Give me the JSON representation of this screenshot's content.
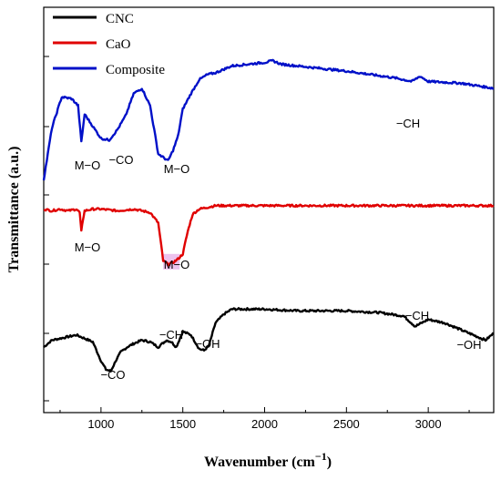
{
  "chart_data": {
    "type": "line",
    "title": "",
    "xlabel": "Wavenumber (cm−1)",
    "xlabel_main": "Wavenumber (cm",
    "xlabel_sup": "−1",
    "xlabel_close": ")",
    "ylabel": "Transmittance (a.u.)",
    "xlim": [
      650,
      3400
    ],
    "x_ticks": [
      1000,
      1500,
      2000,
      2500,
      3000
    ],
    "x_tick_labels": [
      "1000",
      "1500",
      "2000",
      "2500",
      "3000"
    ],
    "y_ticks_count": 6,
    "y_units": "a.u.",
    "grid": false,
    "legend_position": "top-left",
    "colors": {
      "CNC": "#000000",
      "CaO": "#e00000",
      "Composite": "#0010c8",
      "highlight": "#e6a8e6"
    },
    "series": [
      {
        "name": "CNC",
        "color": "#000000",
        "x": [
          650,
          700,
          750,
          800,
          850,
          900,
          950,
          1000,
          1030,
          1060,
          1090,
          1120,
          1160,
          1200,
          1250,
          1300,
          1350,
          1400,
          1430,
          1460,
          1500,
          1550,
          1600,
          1630,
          1660,
          1700,
          1750,
          1800,
          1900,
          2000,
          2200,
          2500,
          2700,
          2850,
          2920,
          3000,
          3100,
          3200,
          3300,
          3350,
          3400
        ],
        "y": [
          0.38,
          0.42,
          0.43,
          0.44,
          0.45,
          0.43,
          0.41,
          0.3,
          0.25,
          0.24,
          0.3,
          0.35,
          0.38,
          0.4,
          0.42,
          0.41,
          0.38,
          0.42,
          0.41,
          0.38,
          0.47,
          0.45,
          0.37,
          0.36,
          0.39,
          0.52,
          0.57,
          0.6,
          0.6,
          0.6,
          0.59,
          0.59,
          0.58,
          0.56,
          0.5,
          0.54,
          0.52,
          0.48,
          0.44,
          0.42,
          0.46
        ]
      },
      {
        "name": "CaO",
        "color": "#e00000",
        "x": [
          650,
          700,
          750,
          800,
          850,
          870,
          880,
          890,
          900,
          950,
          1000,
          1100,
          1200,
          1300,
          1350,
          1380,
          1410,
          1440,
          1470,
          1500,
          1530,
          1560,
          1600,
          1700,
          1800,
          2000,
          2500,
          3000,
          3400
        ],
        "y": [
          1.18,
          1.17,
          1.18,
          1.17,
          1.18,
          1.16,
          1.05,
          1.12,
          1.17,
          1.18,
          1.18,
          1.17,
          1.18,
          1.16,
          1.1,
          0.88,
          0.86,
          0.87,
          0.89,
          0.92,
          1.05,
          1.15,
          1.18,
          1.2,
          1.2,
          1.2,
          1.2,
          1.2,
          1.2
        ]
      },
      {
        "name": "Composite",
        "color": "#0010c8",
        "x": [
          650,
          700,
          760,
          820,
          860,
          880,
          900,
          950,
          1000,
          1050,
          1100,
          1150,
          1200,
          1250,
          1300,
          1350,
          1380,
          1410,
          1440,
          1470,
          1500,
          1550,
          1600,
          1650,
          1700,
          1800,
          1900,
          2000,
          2050,
          2100,
          2200,
          2500,
          2800,
          2900,
          2950,
          3000,
          3200,
          3400
        ],
        "y": [
          1.35,
          1.65,
          1.83,
          1.82,
          1.78,
          1.57,
          1.73,
          1.66,
          1.59,
          1.58,
          1.64,
          1.72,
          1.85,
          1.88,
          1.78,
          1.5,
          1.48,
          1.46,
          1.52,
          1.6,
          1.76,
          1.85,
          1.93,
          1.96,
          1.97,
          2.01,
          2.02,
          2.03,
          2.04,
          2.02,
          2.01,
          1.98,
          1.94,
          1.92,
          1.95,
          1.92,
          1.91,
          1.88
        ]
      }
    ],
    "annotations": [
      {
        "text": "M−O",
        "series": "Composite",
        "x": 860
      },
      {
        "text": "−CO",
        "series": "Composite",
        "x": 1060
      },
      {
        "text": "M−O",
        "series": "Composite",
        "x": 1420
      },
      {
        "text": "−CH",
        "series": "Composite",
        "x": 2900
      },
      {
        "text": "M−O",
        "series": "CaO",
        "x": 880
      },
      {
        "text": "M−O",
        "series": "CaO",
        "x": 1420
      },
      {
        "text": "−CO",
        "series": "CNC",
        "x": 1060
      },
      {
        "text": "−CH",
        "series": "CNC",
        "x": 1420
      },
      {
        "text": "−OH",
        "series": "CNC",
        "x": 1630
      },
      {
        "text": "−CH",
        "series": "CNC",
        "x": 2910
      },
      {
        "text": "−OH",
        "series": "CNC",
        "x": 3320
      }
    ]
  }
}
